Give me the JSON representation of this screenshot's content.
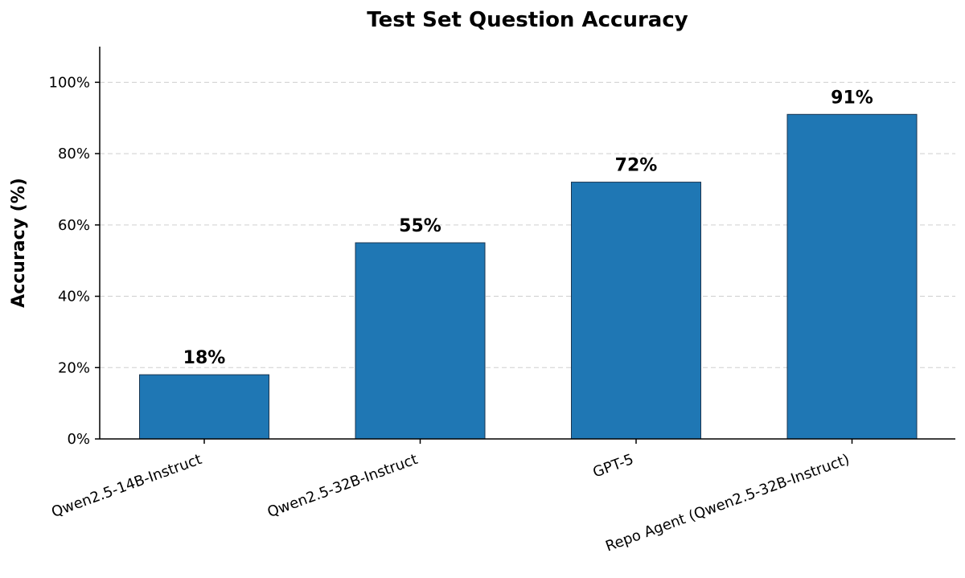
{
  "chart_data": {
    "type": "bar",
    "title": "Test Set Question Accuracy",
    "xlabel": "",
    "ylabel": "Accuracy (%)",
    "categories": [
      "Qwen2.5-14B-Instruct",
      "Qwen2.5-32B-Instruct",
      "GPT-5",
      "Repo Agent (Qwen2.5-32B-Instruct)"
    ],
    "values": [
      18,
      55,
      72,
      91
    ],
    "data_labels": [
      "18%",
      "55%",
      "72%",
      "91%"
    ],
    "ylim": [
      0,
      110
    ],
    "yticks": [
      0,
      20,
      40,
      60,
      80,
      100
    ],
    "ytick_labels": [
      "0%",
      "20%",
      "40%",
      "60%",
      "80%",
      "100%"
    ],
    "grid": "horizontal dashed",
    "bar_color": "#1f77b4"
  }
}
